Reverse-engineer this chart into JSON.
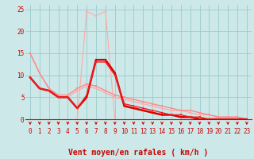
{
  "title": "",
  "xlabel": "Vent moyen/en rafales ( km/h )",
  "bg_color": "#cce8e8",
  "grid_color": "#99cccc",
  "xlim": [
    -0.5,
    23.5
  ],
  "ylim": [
    0,
    26
  ],
  "yticks": [
    0,
    5,
    10,
    15,
    20,
    25
  ],
  "xticks": [
    0,
    1,
    2,
    3,
    4,
    5,
    6,
    7,
    8,
    9,
    10,
    11,
    12,
    13,
    14,
    15,
    16,
    17,
    18,
    19,
    20,
    21,
    22,
    23
  ],
  "curves": [
    {
      "x": [
        5,
        6,
        7,
        8,
        9
      ],
      "y": [
        0,
        24.5,
        23.5,
        24.5,
        0
      ],
      "color": "#ffaaaa",
      "lw": 0.8,
      "marker": "s",
      "ms": 1.5
    },
    {
      "x": [
        0,
        1,
        2,
        3,
        4,
        5,
        6,
        7,
        8,
        9,
        10,
        11,
        12,
        13,
        14,
        15,
        16,
        17,
        18,
        19,
        20,
        21,
        22,
        23
      ],
      "y": [
        15,
        10.5,
        7,
        5,
        5,
        6.5,
        7.5,
        7,
        6,
        5,
        4.5,
        4,
        3.5,
        3,
        2.5,
        2,
        2,
        1.5,
        1,
        1,
        0.5,
        0.5,
        0.5,
        0
      ],
      "color": "#ffaaaa",
      "lw": 1.0,
      "marker": "s",
      "ms": 1.5
    },
    {
      "x": [
        0,
        1,
        2,
        3,
        4,
        5,
        6,
        7,
        8,
        9,
        10,
        11,
        12,
        13,
        14,
        15,
        16,
        17,
        18,
        19,
        20,
        21,
        22,
        23
      ],
      "y": [
        15,
        10.5,
        7,
        5.5,
        5.5,
        7,
        8,
        7.5,
        6.5,
        5.5,
        5,
        4.5,
        4,
        3.5,
        3,
        2.5,
        2,
        2,
        1.5,
        1,
        0.5,
        0.5,
        0.5,
        0
      ],
      "color": "#ff8888",
      "lw": 1.0,
      "marker": "s",
      "ms": 1.5
    },
    {
      "x": [
        0,
        1,
        2,
        3,
        4,
        5,
        6,
        7,
        8,
        9,
        10,
        11,
        12,
        13,
        14,
        15,
        16,
        17,
        18,
        19,
        20,
        21,
        22,
        23
      ],
      "y": [
        9.5,
        7,
        6.5,
        5,
        5,
        2.5,
        5,
        13.5,
        13.5,
        10.5,
        3,
        2.5,
        2,
        1.5,
        1,
        1,
        0.5,
        0.5,
        0,
        0,
        0,
        0,
        0,
        0
      ],
      "color": "#dd0000",
      "lw": 1.8,
      "marker": "s",
      "ms": 1.5
    },
    {
      "x": [
        0,
        1,
        2,
        3,
        4,
        5,
        6,
        7,
        8,
        9,
        10,
        11,
        12,
        13,
        14,
        15,
        16,
        17,
        18,
        19,
        20,
        21,
        22,
        23
      ],
      "y": [
        9.5,
        7,
        6.5,
        5,
        5,
        2.5,
        5.5,
        13,
        13,
        10,
        3.5,
        3,
        2.5,
        2,
        1.5,
        1,
        1,
        0.5,
        0.5,
        0,
        0,
        0,
        0,
        0
      ],
      "color": "#ee2222",
      "lw": 1.0,
      "marker": "s",
      "ms": 1.5
    }
  ],
  "arrow_color": "#cc0000",
  "xlabel_color": "#cc0000",
  "xlabel_fontsize": 7,
  "tick_fontsize": 5.5
}
